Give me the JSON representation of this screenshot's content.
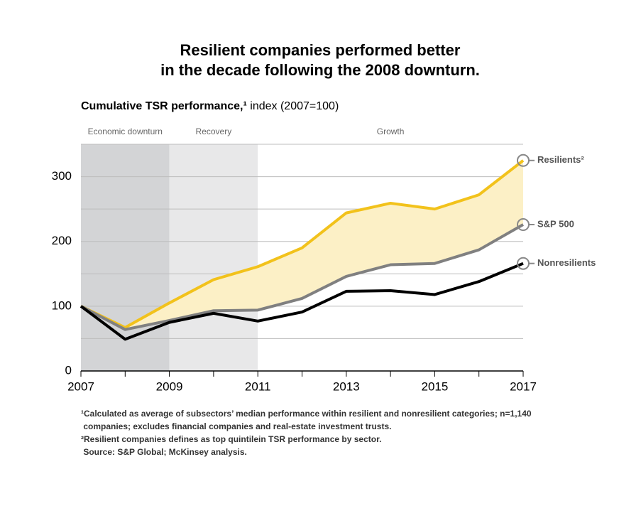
{
  "chart_data": {
    "type": "line",
    "title": [
      "Resilient companies performed better",
      "in the decade following the 2008 downturn."
    ],
    "subtitle_bold": "Cumulative TSR performance,¹",
    "subtitle_rest": "index (2007=100)",
    "phases": [
      {
        "label": "Economic downturn",
        "start": 2007,
        "end": 2009,
        "color": "#d3d4d6"
      },
      {
        "label": "Recovery",
        "start": 2009,
        "end": 2011,
        "color": "#e8e8e9"
      },
      {
        "label": "Growth",
        "start": 2011,
        "end": 2017,
        "color": "#ffffff"
      }
    ],
    "x": [
      2007,
      2008,
      2009,
      2010,
      2011,
      2012,
      2013,
      2014,
      2015,
      2016,
      2017
    ],
    "series": [
      {
        "name": "Resilients²",
        "color": "#f2c21b",
        "values": [
          100,
          67,
          105,
          141,
          161,
          190,
          244,
          259,
          250,
          272,
          325
        ]
      },
      {
        "name": "S&P 500",
        "color": "#808080",
        "values": [
          100,
          64,
          78,
          93,
          94,
          112,
          146,
          164,
          166,
          187,
          226
        ]
      },
      {
        "name": "Nonresilients",
        "color": "#000000",
        "values": [
          100,
          49,
          75,
          89,
          77,
          91,
          123,
          124,
          118,
          138,
          166
        ]
      }
    ],
    "band_color": "#fcf0c6",
    "xlim": [
      2007,
      2017
    ],
    "xticks": [
      2007,
      2009,
      2011,
      2013,
      2015,
      2017
    ],
    "minor_xticks": [
      2008,
      2010,
      2012,
      2014,
      2016
    ],
    "ylim": [
      0,
      350
    ],
    "yticks": [
      0,
      100,
      200,
      300
    ],
    "minor_yticks": [
      50,
      150,
      250,
      350
    ],
    "grid": true,
    "footnotes": [
      "¹Calculated as average of subsectors’ median performance within resilient and nonresilient categories; n=1,140",
      " companies; excludes financial companies and real-estate investment trusts.",
      "²Resilient companies defines as top quintilein TSR performance by sector.",
      " Source: S&P Global; McKinsey analysis."
    ]
  }
}
